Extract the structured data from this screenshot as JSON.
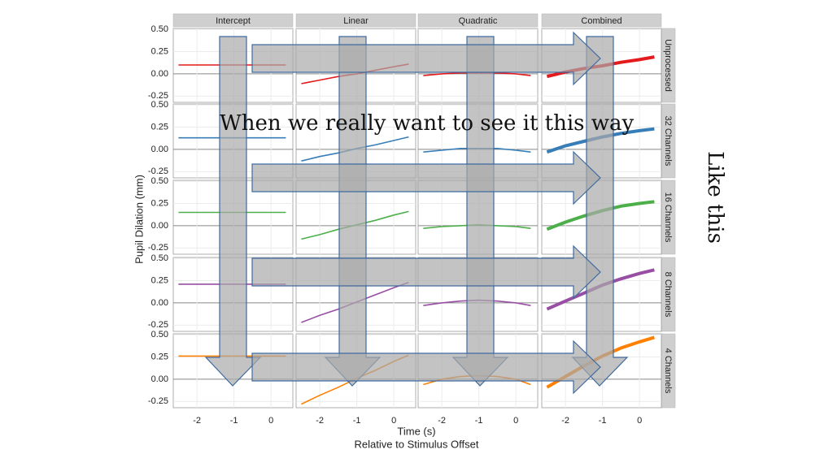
{
  "chart_data": {
    "type": "line",
    "columns": [
      "Intercept",
      "Linear",
      "Quadratic",
      "Combined"
    ],
    "x": [
      -2.5,
      -2,
      -1.5,
      -1,
      -0.5,
      0,
      0.4
    ],
    "xlim": [
      -2.64,
      0.59
    ],
    "xticks": [
      -2,
      -1,
      0
    ],
    "ylim": [
      -0.32,
      0.51
    ],
    "yticks": [
      {
        "value": 0.5,
        "label": "0.50"
      },
      0.25,
      {
        "value": 0,
        "label": "0.00"
      },
      -0.25
    ],
    "x_label": "Time (s)",
    "x_sublabel": "Relative to Stimulus Offset",
    "y_label": "Pupil Dilation (mm)",
    "grid": true,
    "rows": [
      {
        "name": "Unprocessed",
        "color": "#e41a1c",
        "panels": [
          {
            "values": [
              0.1,
              0.1,
              0.1,
              0.1,
              0.1,
              0.1,
              0.1
            ]
          },
          {
            "values": [
              -0.11,
              -0.07,
              -0.03,
              0.0,
              0.04,
              0.08,
              0.11
            ]
          },
          {
            "values": [
              -0.02,
              0.0,
              0.01,
              0.01,
              0.01,
              0.0,
              -0.02
            ]
          },
          {
            "values": [
              -0.03,
              0.02,
              0.06,
              0.09,
              0.13,
              0.16,
              0.19
            ]
          }
        ]
      },
      {
        "name": "32 Channels",
        "color": "#377eb8",
        "panels": [
          {
            "values": [
              0.13,
              0.13,
              0.13,
              0.13,
              0.13,
              0.13,
              0.13
            ]
          },
          {
            "values": [
              -0.13,
              -0.08,
              -0.04,
              0.01,
              0.05,
              0.1,
              0.14
            ]
          },
          {
            "values": [
              -0.03,
              -0.01,
              0.01,
              0.01,
              0.01,
              -0.01,
              -0.03
            ]
          },
          {
            "values": [
              -0.03,
              0.04,
              0.09,
              0.14,
              0.18,
              0.21,
              0.23
            ]
          }
        ]
      },
      {
        "name": "16 Channels",
        "color": "#4daf4a",
        "panels": [
          {
            "values": [
              0.15,
              0.15,
              0.15,
              0.15,
              0.15,
              0.15,
              0.15
            ]
          },
          {
            "values": [
              -0.15,
              -0.1,
              -0.04,
              0.01,
              0.06,
              0.12,
              0.16
            ]
          },
          {
            "values": [
              -0.03,
              -0.01,
              0.0,
              0.01,
              0.0,
              -0.01,
              -0.03
            ]
          },
          {
            "values": [
              -0.04,
              0.04,
              0.11,
              0.17,
              0.22,
              0.25,
              0.27
            ]
          }
        ]
      },
      {
        "name": "8 Channels",
        "color": "#984ea3",
        "panels": [
          {
            "values": [
              0.21,
              0.21,
              0.21,
              0.21,
              0.21,
              0.21,
              0.21
            ]
          },
          {
            "values": [
              -0.22,
              -0.14,
              -0.07,
              0.01,
              0.09,
              0.17,
              0.23
            ]
          },
          {
            "values": [
              -0.03,
              0.0,
              0.02,
              0.03,
              0.02,
              0.0,
              -0.03
            ]
          },
          {
            "values": [
              -0.07,
              0.02,
              0.11,
              0.2,
              0.27,
              0.33,
              0.37
            ]
          }
        ]
      },
      {
        "name": "4 Channels",
        "color": "#ff7f00",
        "panels": [
          {
            "values": [
              0.26,
              0.26,
              0.26,
              0.26,
              0.26,
              0.26,
              0.26
            ]
          },
          {
            "values": [
              -0.28,
              -0.18,
              -0.09,
              0.01,
              0.1,
              0.2,
              0.27
            ]
          },
          {
            "values": [
              -0.06,
              0.0,
              0.03,
              0.04,
              0.03,
              0.0,
              -0.06
            ]
          },
          {
            "values": [
              -0.09,
              0.03,
              0.15,
              0.26,
              0.35,
              0.42,
              0.47
            ]
          }
        ]
      }
    ]
  },
  "slide": {
    "caption": "When we really want to see it this way",
    "side_note": "Like this"
  }
}
